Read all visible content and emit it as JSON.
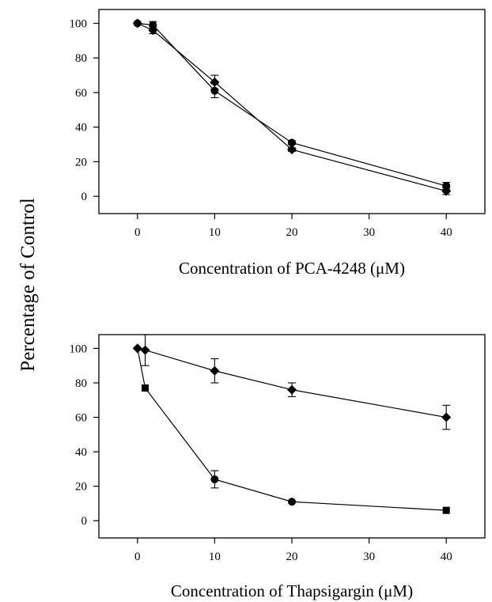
{
  "y_axis_shared_label": "Percentage of Control",
  "chart_data": [
    {
      "type": "scatter",
      "xlabel": "Concentration of  PCA-4248 (μM)",
      "ylabel": "",
      "xlim": [
        -5,
        45
      ],
      "ylim": [
        -10,
        108
      ],
      "x_ticks": [
        0,
        10,
        20,
        30,
        40
      ],
      "y_ticks": [
        0,
        20,
        40,
        60,
        80,
        100
      ],
      "grid": false,
      "series": [
        {
          "marker": "circle",
          "points": [
            {
              "x": 0,
              "y": 100,
              "err": 0
            },
            {
              "x": 2,
              "y": 99,
              "err": 2
            },
            {
              "x": 10,
              "y": 61,
              "err": 4
            },
            {
              "x": 20,
              "y": 31,
              "err": 1
            },
            {
              "x": 40,
              "y": 6,
              "err": 2
            }
          ]
        },
        {
          "marker": "diamond",
          "points": [
            {
              "x": 0,
              "y": 100,
              "err": 0
            },
            {
              "x": 2,
              "y": 96,
              "err": 2
            },
            {
              "x": 10,
              "y": 66,
              "err": 4
            },
            {
              "x": 20,
              "y": 27,
              "err": 1
            },
            {
              "x": 40,
              "y": 3,
              "err": 2
            }
          ]
        }
      ]
    },
    {
      "type": "scatter",
      "xlabel": "Concentration of Thapsigargin (μM)",
      "ylabel": "",
      "xlim": [
        -5,
        45
      ],
      "ylim": [
        -10,
        108
      ],
      "x_ticks": [
        0,
        10,
        20,
        30,
        40
      ],
      "y_ticks": [
        0,
        20,
        40,
        60,
        80,
        100
      ],
      "grid": false,
      "series": [
        {
          "marker": "diamond",
          "points": [
            {
              "x": 0,
              "y": 100,
              "err": 0
            },
            {
              "x": 1,
              "y": 99,
              "err": 9
            },
            {
              "x": 10,
              "y": 87,
              "err": 7
            },
            {
              "x": 20,
              "y": 76,
              "err": 4
            },
            {
              "x": 40,
              "y": 60,
              "err": 7
            }
          ]
        },
        {
          "marker": "mixed",
          "points": [
            {
              "x": 0,
              "y": 100,
              "err": 0,
              "marker": "diamond"
            },
            {
              "x": 1,
              "y": 77,
              "err": 0,
              "marker": "square"
            },
            {
              "x": 10,
              "y": 24,
              "err": 5,
              "marker": "circle"
            },
            {
              "x": 20,
              "y": 11,
              "err": 0,
              "marker": "circle"
            },
            {
              "x": 40,
              "y": 6,
              "err": 0,
              "marker": "square"
            }
          ]
        }
      ]
    }
  ]
}
